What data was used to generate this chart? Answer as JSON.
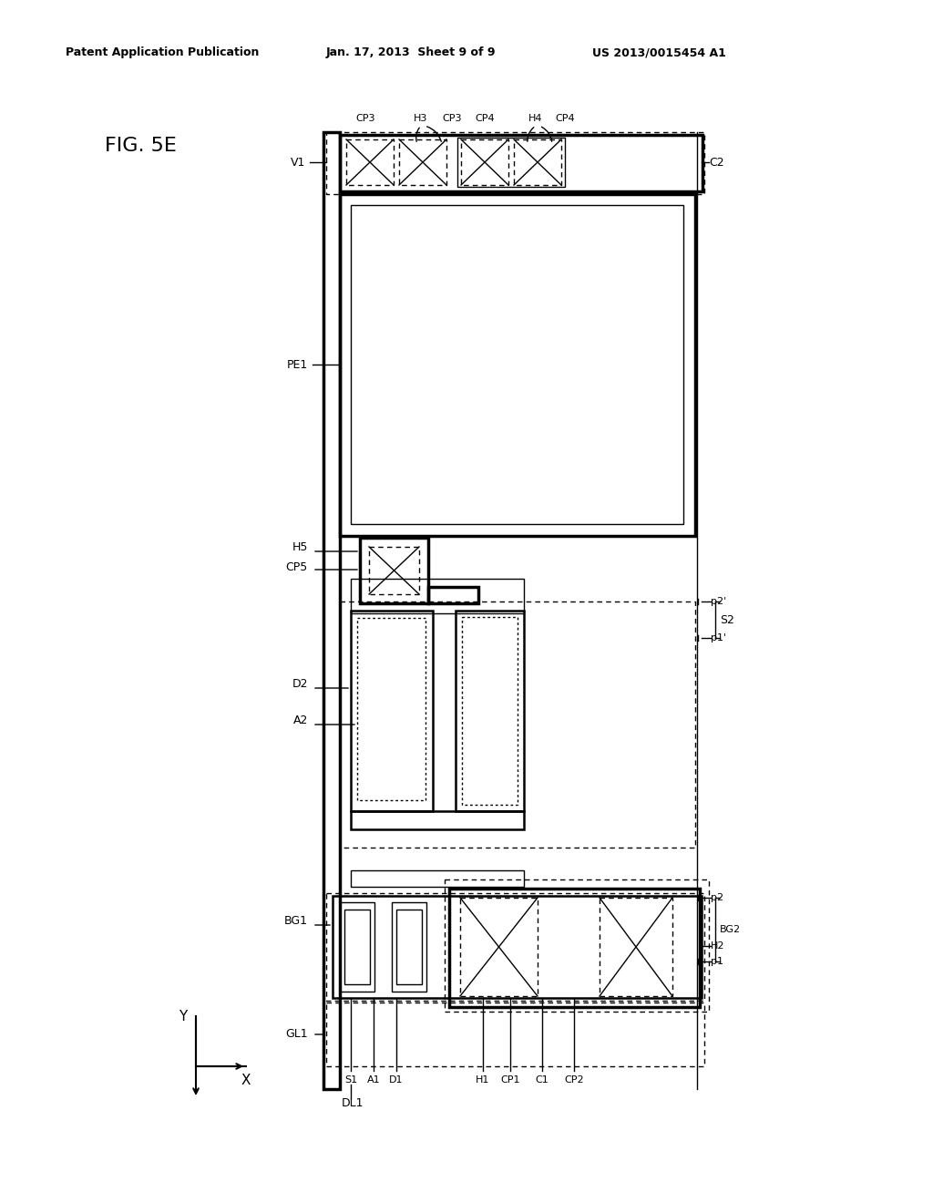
{
  "header_left": "Patent Application Publication",
  "header_center": "Jan. 17, 2013  Sheet 9 of 9",
  "header_right": "US 2013/0015454 A1",
  "fig_label": "FIG. 5E",
  "background": "#ffffff",
  "line_color": "#000000"
}
